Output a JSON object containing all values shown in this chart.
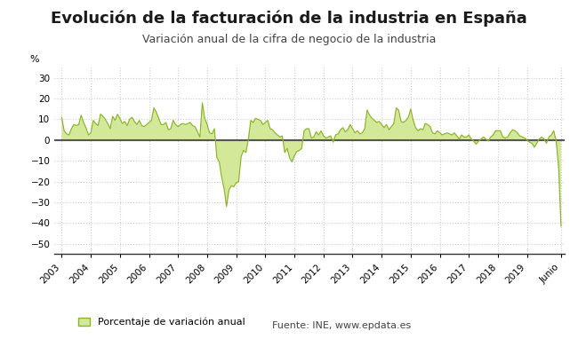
{
  "title": "Evolución de la facturación de la industria en España",
  "subtitle": "Variación anual de la cifra de negocio de la industria",
  "ylabel": "%",
  "ylim": [
    -55,
    35
  ],
  "yticks": [
    -50,
    -40,
    -30,
    -20,
    -10,
    0,
    10,
    20,
    30
  ],
  "legend_label": "Porcentaje de variación anual",
  "source_text": "Fuente: INE, www.epdata.es",
  "line_color": "#8ab528",
  "fill_color": "#d4e89a",
  "zero_line_color": "#555555",
  "bg_color": "#ffffff",
  "grid_color": "#cccccc",
  "title_fontsize": 13,
  "subtitle_fontsize": 9,
  "values": [
    11.0,
    4.5,
    3.0,
    2.5,
    5.5,
    7.5,
    7.0,
    7.5,
    12.0,
    8.5,
    6.0,
    2.5,
    3.5,
    9.5,
    8.0,
    7.0,
    12.5,
    11.5,
    10.0,
    8.0,
    5.5,
    11.5,
    9.5,
    12.5,
    10.5,
    8.0,
    9.0,
    7.0,
    10.0,
    11.0,
    9.0,
    7.5,
    9.5,
    7.0,
    6.5,
    7.5,
    8.5,
    9.5,
    15.5,
    13.5,
    10.5,
    7.5,
    7.5,
    8.5,
    5.0,
    5.5,
    9.5,
    7.5,
    6.5,
    7.5,
    8.0,
    7.5,
    8.0,
    8.5,
    7.0,
    6.5,
    4.0,
    1.5,
    18.0,
    10.5,
    7.5,
    3.5,
    3.0,
    5.5,
    -8.5,
    -10.5,
    -18.0,
    -23.5,
    -32.0,
    -24.0,
    -22.0,
    -22.5,
    -20.5,
    -20.0,
    -8.0,
    -5.0,
    -6.0,
    0.5,
    9.5,
    8.5,
    10.5,
    10.0,
    9.5,
    7.5,
    8.5,
    9.5,
    5.5,
    5.0,
    3.5,
    2.5,
    1.5,
    2.0,
    -6.0,
    -4.0,
    -8.5,
    -10.5,
    -7.5,
    -5.5,
    -5.0,
    -4.0,
    4.5,
    5.5,
    5.5,
    1.0,
    1.5,
    4.0,
    2.5,
    4.5,
    2.0,
    1.0,
    1.5,
    2.0,
    -1.0,
    2.5,
    3.0,
    5.0,
    6.0,
    4.0,
    5.0,
    7.5,
    5.5,
    3.5,
    4.5,
    3.0,
    3.5,
    5.5,
    14.5,
    12.0,
    10.5,
    9.5,
    8.5,
    9.0,
    7.5,
    6.0,
    7.5,
    5.0,
    6.5,
    8.0,
    15.5,
    14.5,
    9.0,
    8.5,
    9.5,
    11.0,
    15.0,
    9.5,
    6.0,
    4.5,
    5.5,
    5.0,
    8.0,
    7.5,
    6.5,
    3.5,
    3.0,
    4.5,
    3.5,
    2.5,
    3.0,
    3.5,
    3.0,
    2.5,
    3.5,
    2.0,
    0.5,
    2.5,
    1.5,
    1.5,
    2.5,
    0.5,
    -0.5,
    -2.0,
    -0.5,
    0.5,
    1.5,
    0.5,
    -0.5,
    1.5,
    2.5,
    4.5,
    4.5,
    4.5,
    1.5,
    1.0,
    1.5,
    3.5,
    5.0,
    4.5,
    3.5,
    2.0,
    1.5,
    1.0,
    0.0,
    -1.0,
    -1.5,
    -3.5,
    -1.5,
    0.5,
    1.5,
    0.5,
    -1.5,
    1.5,
    2.5,
    4.5,
    -0.5,
    -13.0,
    -41.5
  ],
  "x_tick_labels": [
    "2003",
    "2004",
    "2005",
    "2006",
    "2007",
    "2008",
    "2009",
    "2010",
    "2011",
    "2012",
    "2013",
    "2014",
    "2015",
    "2016",
    "2017",
    "2018",
    "2019",
    "Junio"
  ],
  "n_points_per_year": 12
}
